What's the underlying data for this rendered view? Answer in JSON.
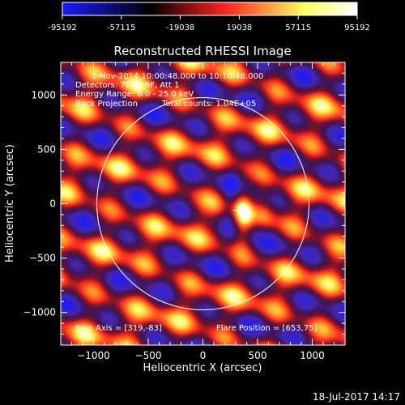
{
  "colorbar": {
    "colors": [
      "#1a1aff",
      "#000000",
      "#ff2020",
      "#ffff60",
      "#ffffff"
    ],
    "tick_labels": [
      "-95192",
      "-57115",
      "-19038",
      "19038",
      "57115",
      "95192"
    ],
    "min": -95192,
    "max": 95192
  },
  "chart_data": {
    "type": "heatmap",
    "title": "Reconstructed RHESSI Image",
    "xlabel": "Heliocentric X (arcsec)",
    "ylabel": "Heliocentric Y (arcsec)",
    "xlim": [
      -1300,
      1300
    ],
    "ylim": [
      -1300,
      1300
    ],
    "x_ticks": [
      -1000,
      -500,
      0,
      500,
      1000
    ],
    "y_ticks": [
      -1000,
      -500,
      0,
      500,
      1000
    ],
    "x_tick_labels": [
      "−1000",
      "−500",
      "0",
      "500",
      "1000"
    ],
    "y_tick_labels": [
      "−1000",
      "−500",
      "0",
      "500",
      "1000"
    ],
    "solar_disk": {
      "center": [
        0,
        0
      ],
      "radius_arcsec": 970
    },
    "flare_marker": [
      320,
      -60
    ],
    "annotations": {
      "time_range": "1-Nov-2014 10:00:48.000 to 10:10:48.000",
      "detectors": "Detectors: 7F 8F 9F, Att 1",
      "energy_range": "Energy Range: 6.0 - 25.0 keV",
      "method": "Back Projection",
      "total_counts": "Total counts: 1.04E+05",
      "spin_axis": "Spin Axis = [319,-83]",
      "flare_position": "Flare Position = [653,75]"
    }
  },
  "footer": {
    "timestamp": "18-Jul-2017 14:17"
  }
}
